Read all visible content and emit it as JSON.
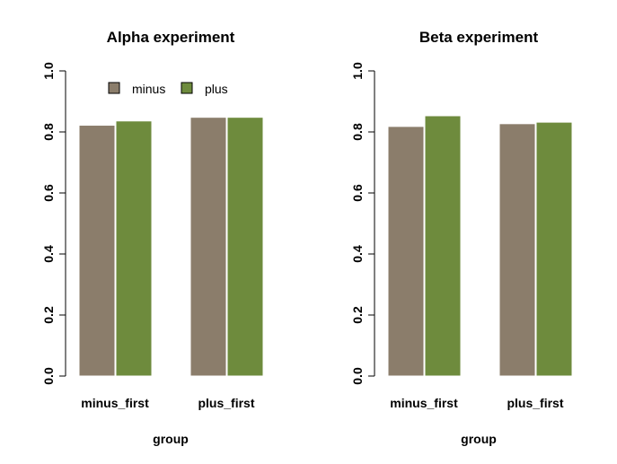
{
  "chart_data": [
    {
      "type": "bar",
      "title": "Alpha experiment",
      "xlabel": "group",
      "ylabel": "",
      "ylim": [
        0,
        1
      ],
      "yticks": [
        "0.0",
        "0.2",
        "0.4",
        "0.6",
        "0.8",
        "1.0"
      ],
      "categories": [
        "minus_first",
        "plus_first"
      ],
      "series": [
        {
          "name": "minus",
          "color": "#8b7d6b",
          "values": [
            0.822,
            0.848
          ]
        },
        {
          "name": "plus",
          "color": "#6e8b3d",
          "values": [
            0.836,
            0.848
          ]
        }
      ],
      "legend": {
        "position": "top-left",
        "entries": [
          "minus",
          "plus"
        ]
      },
      "grid": false
    },
    {
      "type": "bar",
      "title": "Beta experiment",
      "xlabel": "group",
      "ylabel": "",
      "ylim": [
        0,
        1
      ],
      "yticks": [
        "0.0",
        "0.2",
        "0.4",
        "0.6",
        "0.8",
        "1.0"
      ],
      "categories": [
        "minus_first",
        "plus_first"
      ],
      "series": [
        {
          "name": "minus",
          "color": "#8b7d6b",
          "values": [
            0.818,
            0.827
          ]
        },
        {
          "name": "plus",
          "color": "#6e8b3d",
          "values": [
            0.853,
            0.832
          ]
        }
      ],
      "grid": false
    }
  ]
}
